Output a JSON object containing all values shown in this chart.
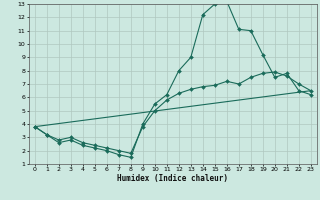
{
  "title": "",
  "xlabel": "Humidex (Indice chaleur)",
  "bg_color": "#cce8e0",
  "grid_color": "#b0c8c0",
  "line_color": "#1a6b5a",
  "xlim": [
    -0.5,
    23.5
  ],
  "ylim": [
    1,
    13
  ],
  "xticks": [
    0,
    1,
    2,
    3,
    4,
    5,
    6,
    7,
    8,
    9,
    10,
    11,
    12,
    13,
    14,
    15,
    16,
    17,
    18,
    19,
    20,
    21,
    22,
    23
  ],
  "yticks": [
    1,
    2,
    3,
    4,
    5,
    6,
    7,
    8,
    9,
    10,
    11,
    12,
    13
  ],
  "line1_x": [
    0,
    1,
    2,
    3,
    4,
    5,
    6,
    7,
    8,
    9,
    10,
    11,
    12,
    13,
    14,
    15,
    16,
    17,
    18,
    19,
    20,
    21,
    22,
    23
  ],
  "line1_y": [
    3.8,
    3.2,
    2.6,
    2.8,
    2.4,
    2.2,
    2.0,
    1.7,
    1.5,
    4.0,
    5.5,
    6.2,
    8.0,
    9.0,
    12.2,
    13.0,
    13.2,
    11.1,
    11.0,
    9.2,
    7.5,
    7.8,
    6.5,
    6.2
  ],
  "line2_x": [
    0,
    1,
    2,
    3,
    4,
    5,
    6,
    7,
    8,
    9,
    10,
    11,
    12,
    13,
    14,
    15,
    16,
    17,
    18,
    19,
    20,
    21,
    22,
    23
  ],
  "line2_y": [
    3.8,
    3.2,
    2.8,
    3.0,
    2.6,
    2.4,
    2.2,
    2.0,
    1.8,
    3.8,
    5.0,
    5.8,
    6.3,
    6.6,
    6.8,
    6.9,
    7.2,
    7.0,
    7.5,
    7.8,
    7.9,
    7.6,
    7.0,
    6.5
  ],
  "line3_x": [
    0,
    23
  ],
  "line3_y": [
    3.8,
    6.5
  ]
}
